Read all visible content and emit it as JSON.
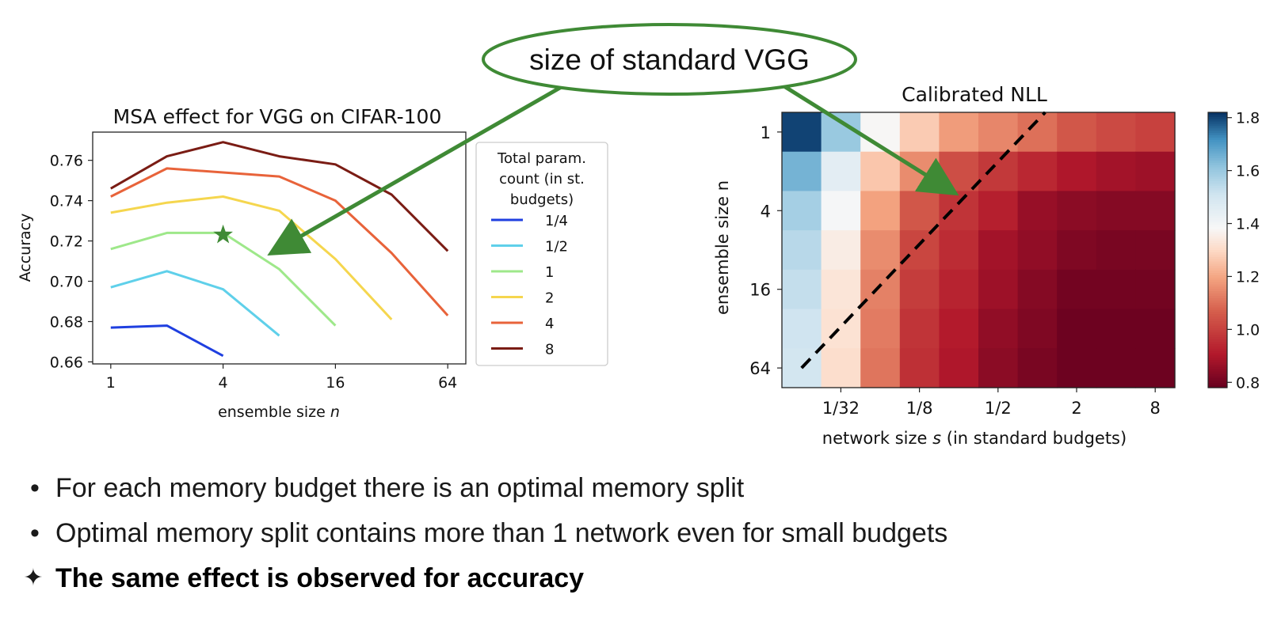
{
  "callout": {
    "text": "size of standard VGG",
    "color": "#3f8a35"
  },
  "chart_data": [
    {
      "type": "line",
      "title": "MSA effect for VGG on CIFAR-100",
      "xlabel": "ensemble size n",
      "ylabel": "Accuracy",
      "xscale": "log2",
      "xlim": [
        0.8,
        80
      ],
      "ylim": [
        0.659,
        0.774
      ],
      "xticks": [
        1,
        4,
        16,
        64
      ],
      "xtick_labels": [
        "1",
        "4",
        "16",
        "64"
      ],
      "yticks": [
        0.66,
        0.68,
        0.7,
        0.72,
        0.74,
        0.76
      ],
      "ytick_labels": [
        "0.66",
        "0.68",
        "0.70",
        "0.72",
        "0.74",
        "0.76"
      ],
      "legend_title": "Total param. count (in st. budgets)",
      "legend_title_lines": [
        "Total param.",
        "count (in st.",
        "budgets)"
      ],
      "legend_position": "right-outside",
      "series": [
        {
          "name": "1/4",
          "color": "#1f3fe0",
          "x": [
            1,
            2,
            4
          ],
          "values": [
            0.677,
            0.678,
            0.663
          ]
        },
        {
          "name": "1/2",
          "color": "#5fd0ea",
          "x": [
            1,
            2,
            4,
            8
          ],
          "values": [
            0.697,
            0.705,
            0.696,
            0.673
          ]
        },
        {
          "name": "1",
          "color": "#9ee88a",
          "x": [
            1,
            2,
            4,
            8,
            16
          ],
          "values": [
            0.716,
            0.724,
            0.724,
            0.706,
            0.678
          ]
        },
        {
          "name": "2",
          "color": "#f5d64e",
          "x": [
            1,
            2,
            4,
            8,
            16,
            32
          ],
          "values": [
            0.734,
            0.739,
            0.742,
            0.735,
            0.711,
            0.681
          ]
        },
        {
          "name": "4",
          "color": "#e8633a",
          "x": [
            1,
            2,
            4,
            8,
            16,
            32,
            64
          ],
          "values": [
            0.742,
            0.756,
            0.754,
            0.752,
            0.74,
            0.714,
            0.683
          ]
        },
        {
          "name": "8",
          "color": "#7a1c14",
          "x": [
            1,
            2,
            4,
            8,
            16,
            32,
            64
          ],
          "values": [
            0.746,
            0.762,
            0.769,
            0.762,
            0.758,
            0.743,
            0.715
          ]
        }
      ],
      "marker": {
        "symbol": "star",
        "x": 4,
        "y": 0.723,
        "color": "#3f8a35"
      }
    },
    {
      "type": "heatmap",
      "title": "Calibrated NLL",
      "xlabel": "network size s (in standard budgets)",
      "ylabel": "ensemble size n",
      "x_tick_labels": [
        "1/32",
        "1/8",
        "1/2",
        "2",
        "8"
      ],
      "x_tick_columns": [
        1,
        3,
        5,
        7,
        9
      ],
      "y_tick_labels": [
        "1",
        "4",
        "16",
        "64"
      ],
      "y_tick_rows": [
        0,
        2,
        4,
        6
      ],
      "colorbar": {
        "min": 0.78,
        "max": 1.82,
        "ticks": [
          0.8,
          1.0,
          1.2,
          1.4,
          1.6,
          1.8
        ],
        "tick_labels": [
          "0.8",
          "1.0",
          "1.2",
          "1.4",
          "1.6",
          "1.8"
        ]
      },
      "values": [
        [
          1.8,
          1.6,
          1.38,
          1.27,
          1.18,
          1.14,
          1.1,
          1.05,
          1.02,
          1.0
        ],
        [
          1.65,
          1.45,
          1.26,
          1.15,
          1.03,
          0.98,
          0.94,
          0.9,
          0.88,
          0.87
        ],
        [
          1.58,
          1.39,
          1.19,
          1.05,
          0.97,
          0.92,
          0.86,
          0.84,
          0.83,
          0.83
        ],
        [
          1.55,
          1.35,
          1.15,
          1.01,
          0.95,
          0.88,
          0.85,
          0.82,
          0.81,
          0.81
        ],
        [
          1.53,
          1.33,
          1.13,
          0.99,
          0.93,
          0.87,
          0.83,
          0.8,
          0.8,
          0.8
        ],
        [
          1.51,
          1.32,
          1.12,
          0.97,
          0.91,
          0.85,
          0.82,
          0.79,
          0.79,
          0.79
        ],
        [
          1.5,
          1.31,
          1.11,
          0.96,
          0.9,
          0.84,
          0.81,
          0.79,
          0.79,
          0.79
        ]
      ],
      "diagonal_line": {
        "style": "dashed",
        "color": "#000000",
        "from": [
          0.5,
          6.5
        ],
        "to": [
          6.7,
          0.0
        ]
      }
    }
  ],
  "bullets": [
    {
      "marker": "•",
      "text": "For each memory budget there is an optimal memory split",
      "bold": false
    },
    {
      "marker": "•",
      "text": "Optimal memory split contains more than 1 network even for small budgets",
      "bold": false
    },
    {
      "marker": "✦",
      "text": "The same effect is observed for accuracy",
      "bold": true
    }
  ]
}
